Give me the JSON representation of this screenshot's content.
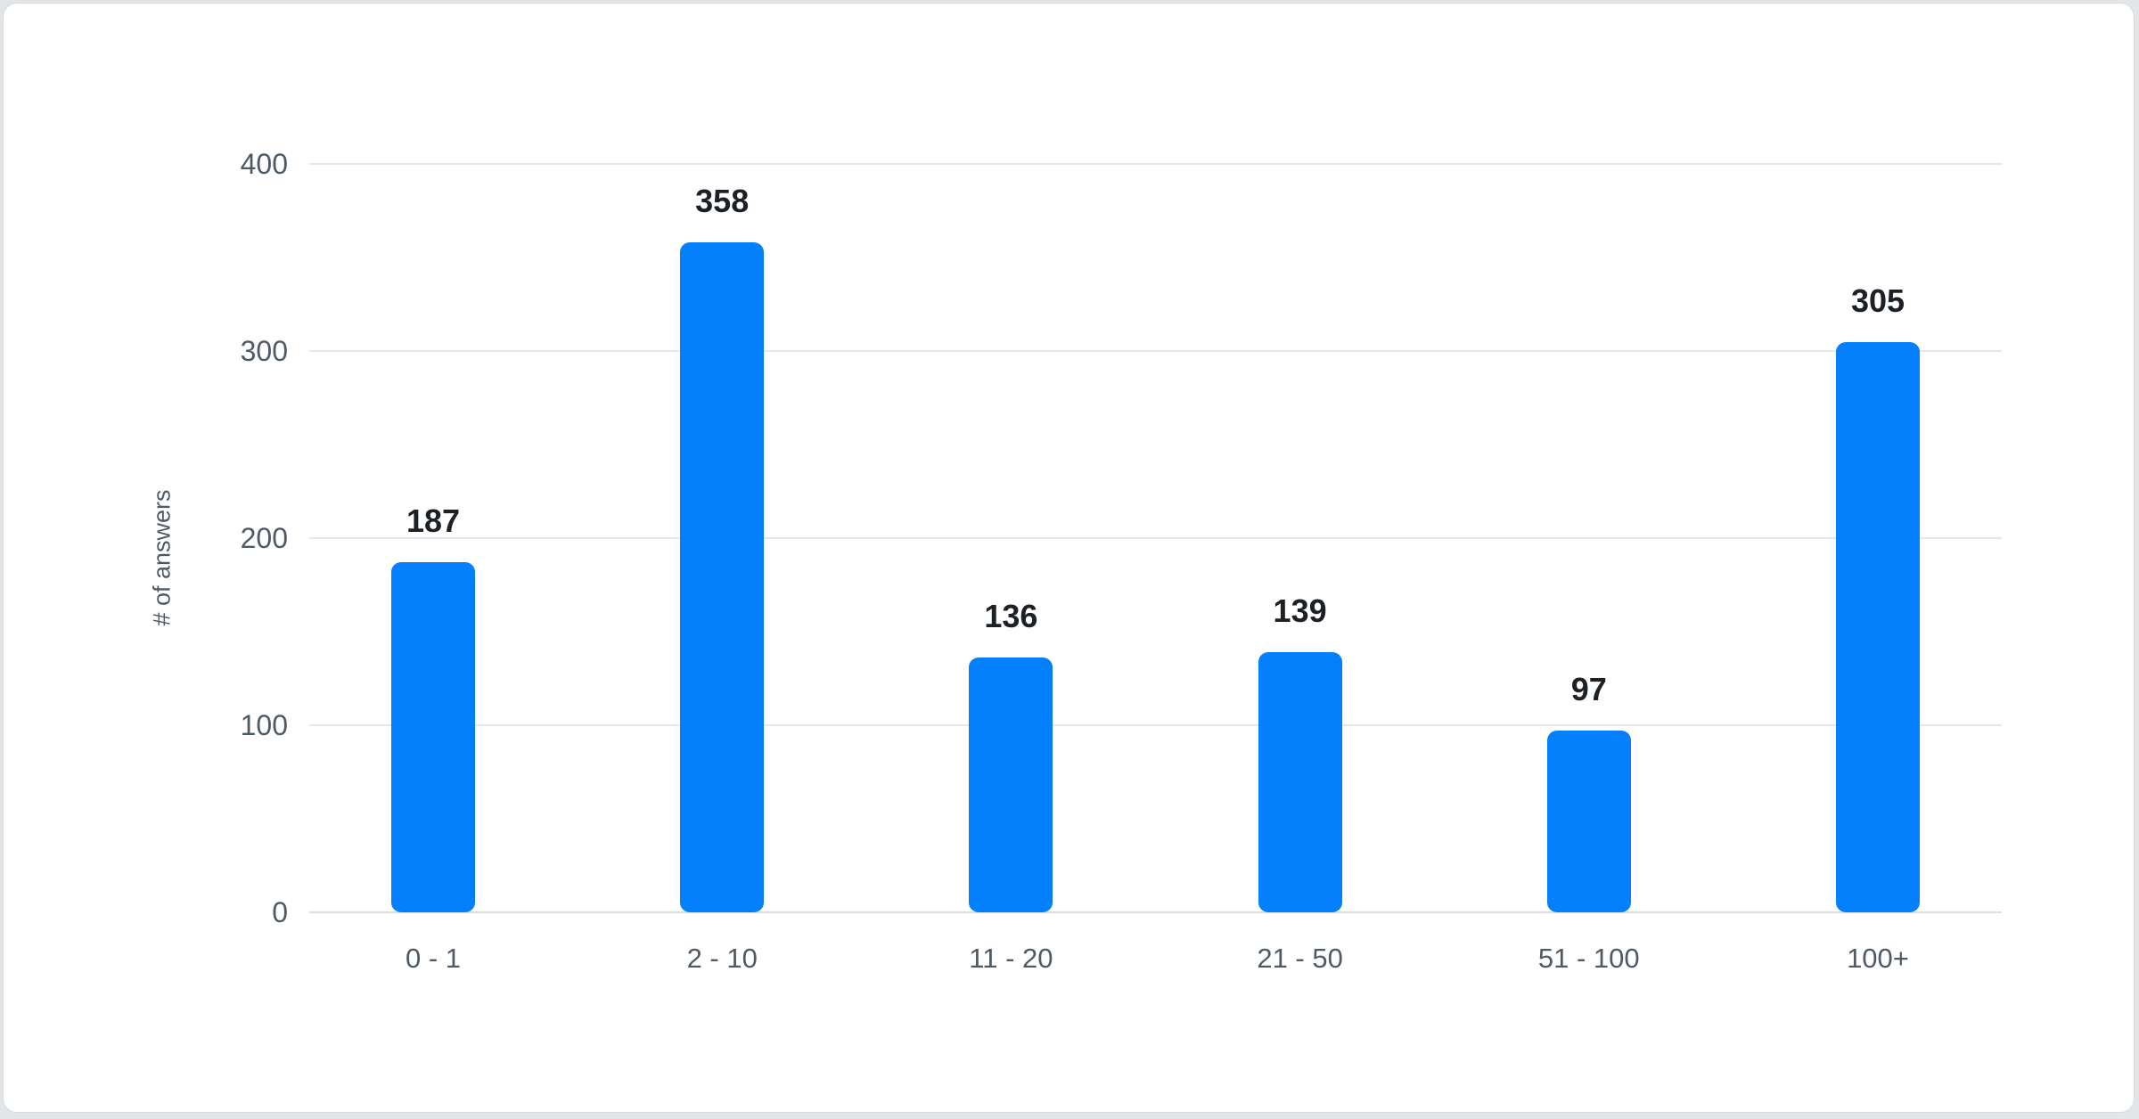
{
  "card": {
    "background": "#ffffff",
    "page_background": "#e3e6e9",
    "border_color": "#d9dde0"
  },
  "chart_data": {
    "type": "bar",
    "title": "",
    "xlabel": "",
    "ylabel": "# of answers",
    "categories": [
      "0 - 1",
      "2 - 10",
      "11 - 20",
      "21 - 50",
      "51 - 100",
      "100+"
    ],
    "values": [
      187,
      358,
      136,
      139,
      97,
      305
    ],
    "value_labels": [
      "187",
      "358",
      "136",
      "139",
      "97",
      "305"
    ],
    "ylim": [
      0,
      400
    ],
    "yticks": [
      0,
      100,
      200,
      300,
      400
    ],
    "ytick_labels": [
      "0",
      "100",
      "200",
      "300",
      "400"
    ],
    "grid": true,
    "legend_position": "none",
    "colors": {
      "bar": "#0580fd",
      "value_label": "#1d2126",
      "tick_label": "#4e5a66",
      "gridline": "#e5e8ea",
      "baseline": "#dcdfe2"
    }
  }
}
